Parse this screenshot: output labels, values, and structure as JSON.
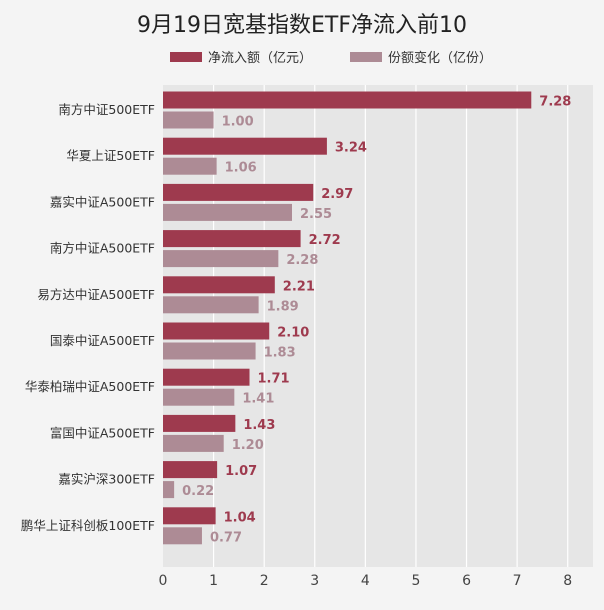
{
  "chart_data": {
    "type": "bar",
    "orientation": "horizontal",
    "title": "9月19日宽基指数ETF净流入前10",
    "categories": [
      "南方中证500ETF",
      "华夏上证50ETF",
      "嘉实中证A500ETF",
      "南方中证A500ETF",
      "易方达中证A500ETF",
      "国泰中证A500ETF",
      "华泰柏瑞中证A500ETF",
      "富国中证A500ETF",
      "嘉实沪深300ETF",
      "鹏华上证科创板100ETF"
    ],
    "series": [
      {
        "name": "净流入额（亿元）",
        "color": "#9e3a4e",
        "values": [
          7.28,
          3.24,
          2.97,
          2.72,
          2.21,
          2.1,
          1.71,
          1.43,
          1.07,
          1.04
        ],
        "labels": [
          "7.28",
          "3.24",
          "2.97",
          "2.72",
          "2.21",
          "2.10",
          "1.71",
          "1.43",
          "1.07",
          "1.04"
        ]
      },
      {
        "name": "份额变化（亿份）",
        "color": "#ad8b95",
        "values": [
          1.0,
          1.06,
          2.55,
          2.28,
          1.89,
          1.83,
          1.41,
          1.2,
          0.22,
          0.77
        ],
        "labels": [
          "1.00",
          "1.06",
          "2.55",
          "2.28",
          "1.89",
          "1.83",
          "1.41",
          "1.20",
          "0.22",
          "0.77"
        ]
      }
    ],
    "xlim": [
      0,
      8.5
    ],
    "xticks": [
      "0",
      "1",
      "2",
      "3",
      "4",
      "5",
      "6",
      "7",
      "8"
    ],
    "grid": true,
    "legend": "top-center"
  }
}
